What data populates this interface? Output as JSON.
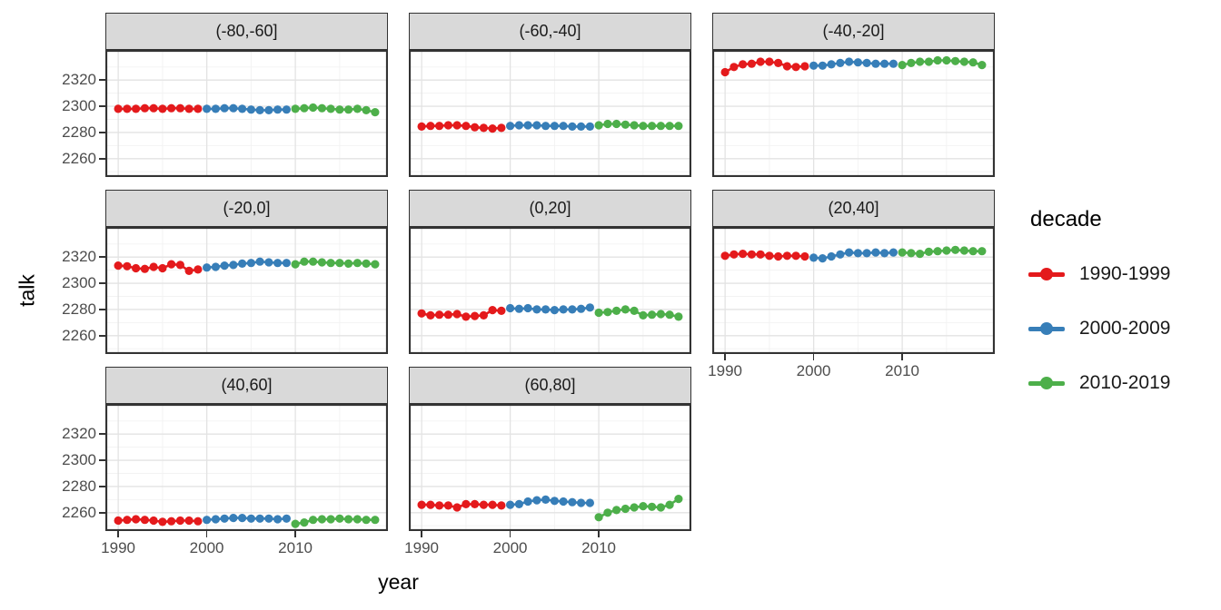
{
  "figure": {
    "y_axis_title": "talk",
    "x_axis_title": "year",
    "legend": {
      "title": "decade",
      "entries": [
        {
          "label": "1990-1999",
          "color": "#E41A1C"
        },
        {
          "label": "2000-2009",
          "color": "#377EB8"
        },
        {
          "label": "2010-2019",
          "color": "#4DAF4A"
        }
      ]
    }
  },
  "chart_data": {
    "type": "line",
    "title": "",
    "xlabel": "year",
    "ylabel": "talk",
    "legend_title": "decade",
    "legend_position": "right",
    "grid": true,
    "x": [
      1990,
      1991,
      1992,
      1993,
      1994,
      1995,
      1996,
      1997,
      1998,
      1999,
      2000,
      2001,
      2002,
      2003,
      2004,
      2005,
      2006,
      2007,
      2008,
      2009,
      2010,
      2011,
      2012,
      2013,
      2014,
      2015,
      2016,
      2017,
      2018,
      2019
    ],
    "x_ticks": [
      1990,
      2000,
      2010
    ],
    "y_ticks": [
      2320,
      2300,
      2280,
      2260
    ],
    "x_minor": [
      1995,
      2005,
      2015
    ],
    "y_minor": [
      2250,
      2270,
      2290,
      2310,
      2330
    ],
    "xlim": [
      1988.55,
      2020.45
    ],
    "ylim": [
      2246,
      2343
    ],
    "series": [
      {
        "name": "1990-1999",
        "color": "#E41A1C",
        "x_start": 1990,
        "x_end": 1999
      },
      {
        "name": "2000-2009",
        "color": "#377EB8",
        "x_start": 2000,
        "x_end": 2009
      },
      {
        "name": "2010-2019",
        "color": "#4DAF4A",
        "x_start": 2010,
        "x_end": 2019
      }
    ],
    "facets": [
      {
        "label": "(-80,-60]",
        "values": [
          2298,
          2298,
          2298,
          2298.5,
          2298.5,
          2298,
          2298.5,
          2298.5,
          2298,
          2298,
          2298,
          2298,
          2298.5,
          2298.5,
          2298,
          2297.5,
          2297,
          2297,
          2297.5,
          2297.5,
          2298,
          2298.5,
          2299,
          2298.5,
          2298,
          2297.5,
          2297.5,
          2298,
          2297,
          2295.5
        ]
      },
      {
        "label": "(-60,-40]",
        "values": [
          2284.5,
          2285,
          2285,
          2285.5,
          2285.5,
          2285,
          2284,
          2283.5,
          2283,
          2283.5,
          2285,
          2285.5,
          2285.5,
          2285.5,
          2285,
          2285,
          2285,
          2284.5,
          2284.5,
          2284.5,
          2285.5,
          2286.5,
          2286.5,
          2286,
          2285.5,
          2285,
          2285,
          2285,
          2285,
          2285
        ]
      },
      {
        "label": "(-40,-20]",
        "values": [
          2326,
          2330,
          2332,
          2332.5,
          2334,
          2334,
          2333,
          2330.5,
          2330,
          2330.5,
          2331,
          2331,
          2332,
          2333,
          2334,
          2333.5,
          2333,
          2332.5,
          2332.5,
          2332.5,
          2331.5,
          2333,
          2334,
          2334,
          2335,
          2335,
          2334.5,
          2334,
          2333.5,
          2331.5
        ]
      },
      {
        "label": "(-20,0]",
        "values": [
          2313.5,
          2313,
          2311.5,
          2311,
          2312.5,
          2311.5,
          2314.5,
          2314,
          2309.5,
          2310.5,
          2312,
          2312.5,
          2313.5,
          2314,
          2315,
          2315.5,
          2316.5,
          2316,
          2315.5,
          2315.5,
          2314.5,
          2316.5,
          2316.5,
          2316,
          2315.5,
          2315.5,
          2315,
          2315.5,
          2315,
          2314.5
        ]
      },
      {
        "label": "(0,20]",
        "values": [
          2277,
          2275.5,
          2276,
          2276,
          2276.5,
          2274.5,
          2275,
          2275.5,
          2279.5,
          2279,
          2281,
          2280.5,
          2281,
          2280,
          2280,
          2279.5,
          2280,
          2280,
          2280.5,
          2281.5,
          2277.5,
          2278,
          2279,
          2280,
          2279,
          2275.5,
          2276,
          2276.5,
          2276,
          2274.5
        ]
      },
      {
        "label": "(20,40]",
        "values": [
          2321,
          2322,
          2322.5,
          2322,
          2322,
          2321,
          2320.5,
          2321,
          2321,
          2320.5,
          2319.5,
          2319,
          2320.5,
          2322,
          2323.5,
          2323,
          2323,
          2323.5,
          2323,
          2323.5,
          2323.5,
          2323,
          2322.5,
          2324,
          2324.5,
          2325,
          2325.5,
          2325,
          2324.5,
          2324.5
        ]
      },
      {
        "label": "(40,60]",
        "values": [
          2254,
          2254.5,
          2255,
          2254.5,
          2254,
          2253,
          2253.5,
          2254,
          2254,
          2253.5,
          2254.5,
          2255,
          2255.5,
          2256,
          2256,
          2255.5,
          2255.5,
          2255.5,
          2255,
          2255.5,
          2251.5,
          2252.5,
          2254.5,
          2255,
          2255,
          2255.5,
          2255,
          2255,
          2254.5,
          2254.5
        ]
      },
      {
        "label": "(60,80]",
        "values": [
          2266,
          2266,
          2265.5,
          2265.5,
          2264,
          2266.5,
          2266.5,
          2266,
          2266,
          2265.5,
          2266,
          2266.5,
          2268.5,
          2269.5,
          2270,
          2269,
          2268.5,
          2268,
          2267.5,
          2267.5,
          2256.5,
          2260,
          2262,
          2263,
          2264,
          2265,
          2264.5,
          2264,
          2266,
          2270.5
        ]
      }
    ]
  }
}
